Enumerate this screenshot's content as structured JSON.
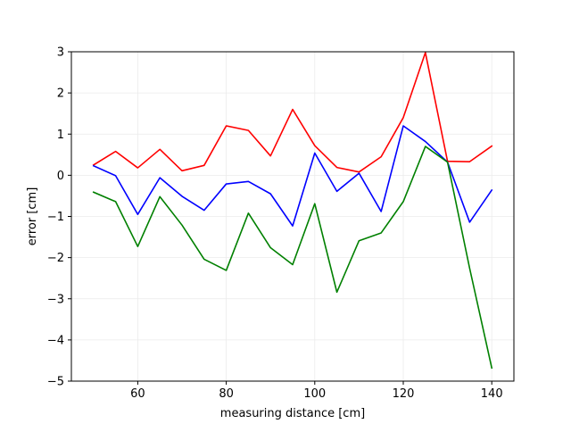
{
  "chart_data": {
    "type": "line",
    "title": "",
    "xlabel": "measuring distance [cm]",
    "ylabel": "error [cm]",
    "xlim": [
      45,
      145
    ],
    "ylim": [
      -5,
      3
    ],
    "xticks": [
      60,
      80,
      100,
      120,
      140
    ],
    "yticks": [
      -5,
      -4,
      -3,
      -2,
      -1,
      0,
      1,
      2,
      3
    ],
    "grid": true,
    "legend": "none",
    "x": [
      50,
      55,
      60,
      65,
      70,
      75,
      80,
      85,
      90,
      95,
      100,
      105,
      110,
      115,
      120,
      125,
      130,
      135,
      140
    ],
    "series": [
      {
        "color": "#ff0000",
        "values": [
          0.25,
          0.58,
          0.18,
          0.63,
          0.11,
          0.24,
          1.2,
          1.09,
          0.47,
          1.6,
          0.72,
          0.19,
          0.08,
          0.45,
          1.4,
          2.98,
          0.34,
          0.33,
          0.71
        ]
      },
      {
        "color": "#0000ff",
        "values": [
          0.23,
          -0.01,
          -0.95,
          -0.06,
          -0.51,
          -0.85,
          -0.21,
          -0.15,
          -0.45,
          -1.23,
          0.54,
          -0.39,
          0.05,
          -0.88,
          1.2,
          0.82,
          0.32,
          -1.14,
          -0.36
        ]
      },
      {
        "color": "#008000",
        "values": [
          -0.41,
          -0.64,
          -1.73,
          -0.52,
          -1.21,
          -2.04,
          -2.31,
          -0.92,
          -1.76,
          -2.17,
          -0.69,
          -2.84,
          -1.59,
          -1.4,
          -0.64,
          0.7,
          0.32,
          -2.26,
          -4.68
        ]
      }
    ]
  }
}
